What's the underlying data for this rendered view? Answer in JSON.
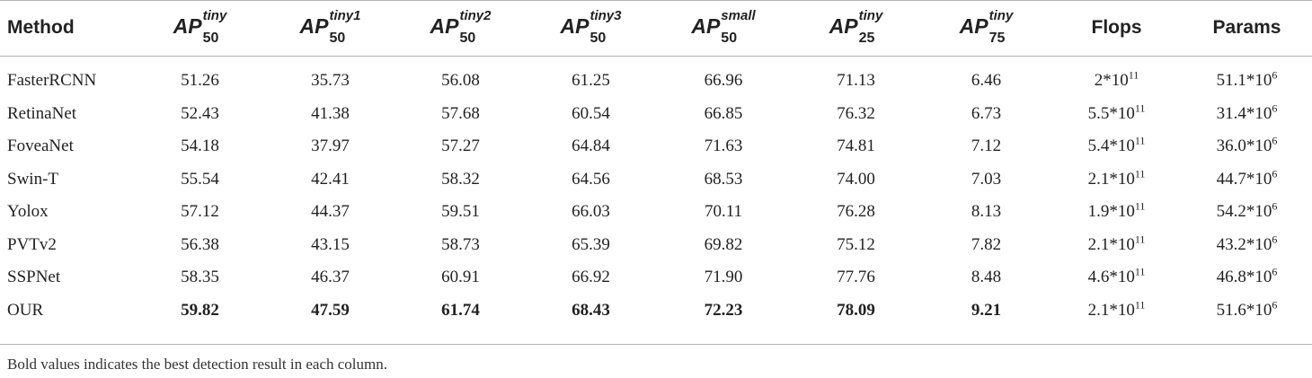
{
  "header": {
    "method": "Method",
    "ap_base": "AP",
    "cols": [
      {
        "sup": "tiny",
        "sub": "50"
      },
      {
        "sup": "tiny1",
        "sub": "50"
      },
      {
        "sup": "tiny2",
        "sub": "50"
      },
      {
        "sup": "tiny3",
        "sub": "50"
      },
      {
        "sup": "small",
        "sub": "50"
      },
      {
        "sup": "tiny",
        "sub": "25"
      },
      {
        "sup": "tiny",
        "sub": "75"
      }
    ],
    "flops": "Flops",
    "params": "Params"
  },
  "rows": [
    {
      "method": "FasterRCNN",
      "v": [
        "51.26",
        "35.73",
        "56.08",
        "61.25",
        "66.96",
        "71.13",
        "6.46"
      ],
      "flops_m": "2*10",
      "flops_e": "11",
      "params_m": "51.1*10",
      "params_e": "6"
    },
    {
      "method": "RetinaNet",
      "v": [
        "52.43",
        "41.38",
        "57.68",
        "60.54",
        "66.85",
        "76.32",
        "6.73"
      ],
      "flops_m": "5.5*10",
      "flops_e": "11",
      "params_m": "31.4*10",
      "params_e": "6"
    },
    {
      "method": "FoveaNet",
      "v": [
        "54.18",
        "37.97",
        "57.27",
        "64.84",
        "71.63",
        "74.81",
        "7.12"
      ],
      "flops_m": "5.4*10",
      "flops_e": "11",
      "params_m": "36.0*10",
      "params_e": "6"
    },
    {
      "method": "Swin-T",
      "v": [
        "55.54",
        "42.41",
        "58.32",
        "64.56",
        "68.53",
        "74.00",
        "7.03"
      ],
      "flops_m": "2.1*10",
      "flops_e": "11",
      "params_m": "44.7*10",
      "params_e": "6"
    },
    {
      "method": "Yolox",
      "v": [
        "57.12",
        "44.37",
        "59.51",
        "66.03",
        "70.11",
        "76.28",
        "8.13"
      ],
      "flops_m": "1.9*10",
      "flops_e": "11",
      "params_m": "54.2*10",
      "params_e": "6"
    },
    {
      "method": "PVTv2",
      "v": [
        "56.38",
        "43.15",
        "58.73",
        "65.39",
        "69.82",
        "75.12",
        "7.82"
      ],
      "flops_m": "2.1*10",
      "flops_e": "11",
      "params_m": "43.2*10",
      "params_e": "6"
    },
    {
      "method": "SSPNet",
      "v": [
        "58.35",
        "46.37",
        "60.91",
        "66.92",
        "71.90",
        "77.76",
        "8.48"
      ],
      "flops_m": "4.6*10",
      "flops_e": "11",
      "params_m": "46.8*10",
      "params_e": "6"
    },
    {
      "method": "OUR",
      "v": [
        "59.82",
        "47.59",
        "61.74",
        "68.43",
        "72.23",
        "78.09",
        "9.21"
      ],
      "flops_m": "2.1*10",
      "flops_e": "11",
      "params_m": "51.6*10",
      "params_e": "6"
    }
  ],
  "footnote": "Bold values indicates the best detection result in each column."
}
